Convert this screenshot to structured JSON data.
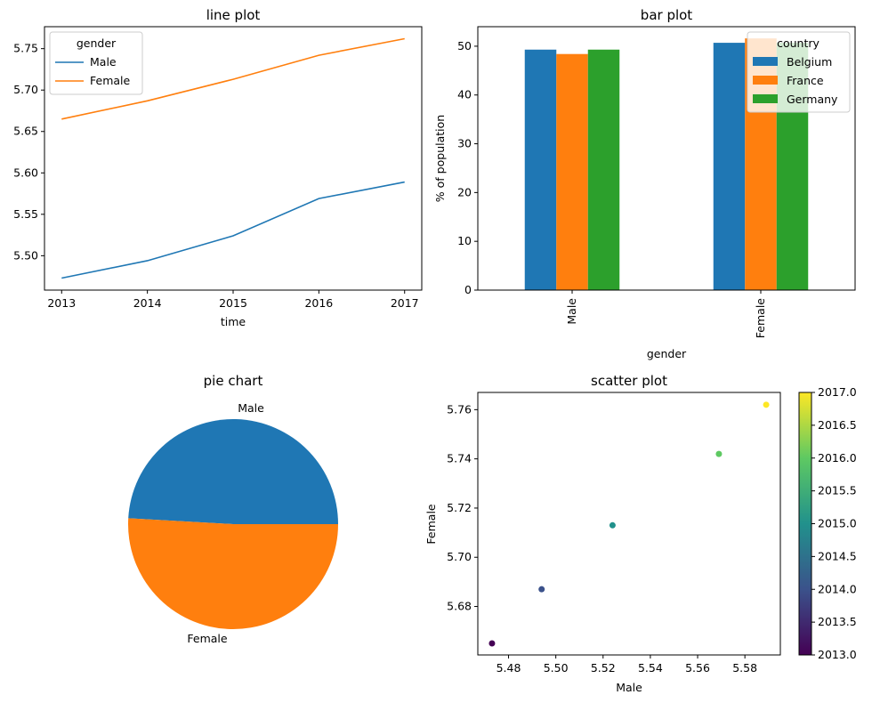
{
  "chart_data": [
    {
      "type": "line",
      "title": "line plot",
      "xlabel": "time",
      "ylabel": "",
      "x": [
        2013,
        2014,
        2015,
        2016,
        2017
      ],
      "xlim": [
        2012.8,
        2017.2
      ],
      "ylim": [
        5.4585,
        5.7765
      ],
      "xticks": [
        "2013",
        "2014",
        "2015",
        "2016",
        "2017"
      ],
      "yticks": [
        "5.50",
        "5.55",
        "5.60",
        "5.65",
        "5.70",
        "5.75"
      ],
      "legend_title": "gender",
      "legend_position": "top-left",
      "series": [
        {
          "name": "Male",
          "color": "#1f77b4",
          "values": [
            5.473,
            5.494,
            5.524,
            5.569,
            5.589
          ]
        },
        {
          "name": "Female",
          "color": "#ff7f0e",
          "values": [
            5.665,
            5.687,
            5.713,
            5.742,
            5.762
          ]
        }
      ]
    },
    {
      "type": "bar",
      "title": "bar plot",
      "xlabel": "gender",
      "ylabel": "% of population",
      "categories": [
        "Male",
        "Female"
      ],
      "ylim": [
        0,
        54
      ],
      "yticks": [
        "0",
        "10",
        "20",
        "30",
        "40",
        "50"
      ],
      "legend_title": "country",
      "legend_position": "top-right",
      "series": [
        {
          "name": "Belgium",
          "color": "#1f77b4",
          "values": [
            49.3,
            50.7
          ]
        },
        {
          "name": "France",
          "color": "#ff7f0e",
          "values": [
            48.4,
            51.6
          ]
        },
        {
          "name": "Germany",
          "color": "#2ca02c",
          "values": [
            49.3,
            50.7
          ]
        }
      ]
    },
    {
      "type": "pie",
      "title": "pie chart",
      "labels": [
        "Male",
        "Female"
      ],
      "values": [
        49.1,
        50.9
      ],
      "colors": [
        "#1f77b4",
        "#ff7f0e"
      ]
    },
    {
      "type": "scatter",
      "title": "scatter plot",
      "xlabel": "Male",
      "ylabel": "Female",
      "points": [
        {
          "x": 5.473,
          "y": 5.665,
          "c": 2013
        },
        {
          "x": 5.494,
          "y": 5.687,
          "c": 2014
        },
        {
          "x": 5.524,
          "y": 5.713,
          "c": 2015
        },
        {
          "x": 5.569,
          "y": 5.742,
          "c": 2016
        },
        {
          "x": 5.589,
          "y": 5.762,
          "c": 2017
        }
      ],
      "xlim": [
        5.467,
        5.595
      ],
      "ylim": [
        5.6603,
        5.767
      ],
      "xticks": [
        "5.48",
        "5.50",
        "5.52",
        "5.54",
        "5.56",
        "5.58"
      ],
      "yticks": [
        "5.68",
        "5.70",
        "5.72",
        "5.74",
        "5.76"
      ],
      "colorbar": {
        "min": 2013,
        "max": 2017,
        "ticks": [
          "2013.0",
          "2013.5",
          "2014.0",
          "2014.5",
          "2015.0",
          "2015.5",
          "2016.0",
          "2016.5",
          "2017.0"
        ],
        "colors": [
          "#440154",
          "#3b528b",
          "#21918c",
          "#5ec962",
          "#fde725"
        ]
      }
    }
  ]
}
